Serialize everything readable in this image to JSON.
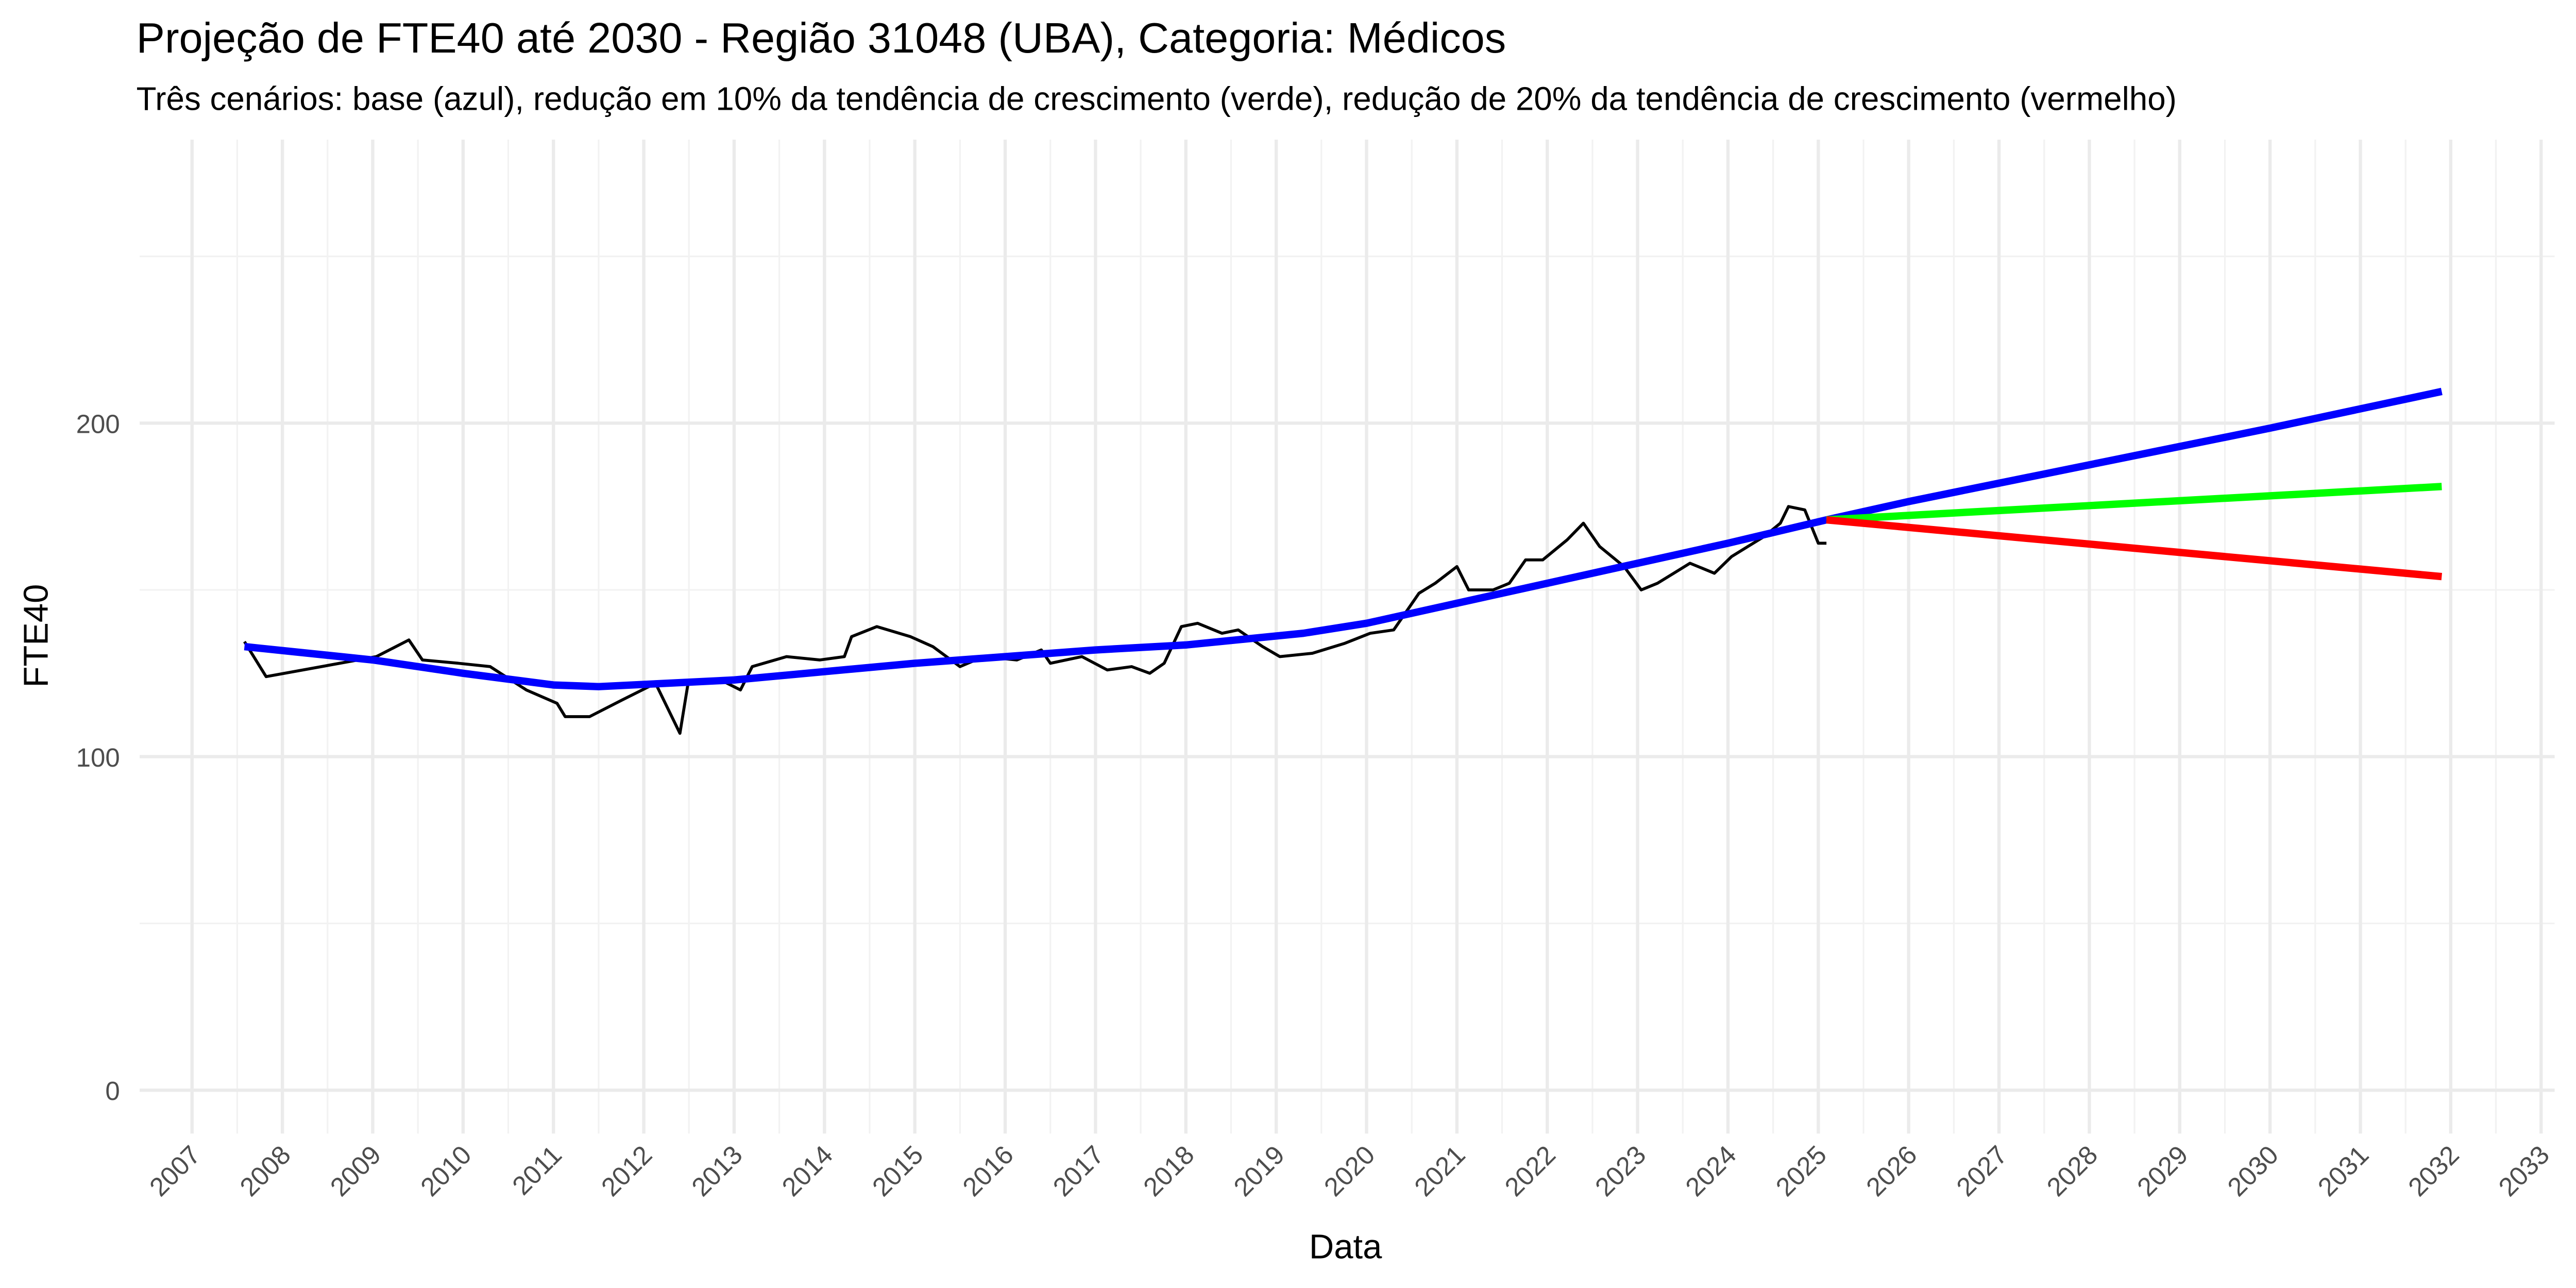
{
  "chart_data": {
    "type": "line",
    "title": "Projeção de FTE40 até 2030 - Região 31048 (UBA), Categoria: Médicos",
    "subtitle": "Três cenários: base (azul), redução em 10% da tendência de crescimento (verde), redução de 20% da tendência de crescimento (vermelho)",
    "x_label": "Data",
    "y_label": "FTE40",
    "xlim": [
      2006.42,
      2033.15
    ],
    "ylim": [
      -13,
      285
    ],
    "xticks": [
      2007,
      2008,
      2009,
      2010,
      2011,
      2012,
      2013,
      2014,
      2015,
      2016,
      2017,
      2018,
      2019,
      2020,
      2021,
      2022,
      2023,
      2024,
      2025,
      2026,
      2027,
      2028,
      2029,
      2030,
      2031,
      2032,
      2033
    ],
    "yticks": [
      0,
      100,
      200
    ],
    "grid": true,
    "series": [
      {
        "color": "#000000",
        "width": 1.8,
        "x": [
          2007.58,
          2007.82,
          2009.04,
          2009.4,
          2009.55,
          2009.95,
          2010.3,
          2010.7,
          2011.04,
          2011.13,
          2011.4,
          2011.76,
          2012.13,
          2012.4,
          2012.49,
          2012.85,
          2013.07,
          2013.2,
          2013.58,
          2013.95,
          2014.22,
          2014.3,
          2014.58,
          2014.95,
          2015.2,
          2015.5,
          2015.76,
          2016.13,
          2016.4,
          2016.5,
          2016.85,
          2017.13,
          2017.4,
          2017.6,
          2017.76,
          2017.95,
          2018.13,
          2018.4,
          2018.58,
          2018.85,
          2019.04,
          2019.4,
          2019.76,
          2020.04,
          2020.3,
          2020.58,
          2020.76,
          2021.0,
          2021.13,
          2021.4,
          2021.58,
          2021.76,
          2021.95,
          2022.22,
          2022.4,
          2022.58,
          2022.85,
          2023.04,
          2023.22,
          2023.4,
          2023.58,
          2023.85,
          2024.04,
          2024.22,
          2024.4,
          2024.58,
          2024.67,
          2024.85,
          2025.0,
          2025.09
        ],
        "values": [
          134.5,
          124,
          130,
          135,
          129,
          128,
          127,
          120,
          116,
          112,
          112,
          117,
          122,
          107,
          122,
          123,
          120,
          127,
          130,
          129,
          130,
          136,
          139,
          136,
          133,
          127,
          130,
          129,
          132,
          128,
          130,
          126,
          127,
          125,
          128,
          139,
          140,
          137,
          138,
          133,
          130,
          131,
          134,
          137,
          138,
          149,
          152,
          157,
          150,
          150,
          152,
          159,
          159,
          165,
          170,
          163,
          157,
          150,
          152,
          155,
          158,
          155,
          160,
          163,
          166,
          170,
          175,
          174,
          164,
          164
        ]
      },
      {
        "color": "#0000ff",
        "width": 4.5,
        "x": [
          2007.58,
          2009,
          2010,
          2011,
          2011.5,
          2013,
          2015,
          2017,
          2018,
          2019.3,
          2020,
          2021,
          2022,
          2023,
          2024,
          2025.09,
          2026,
          2028,
          2030,
          2031.9
        ],
        "values": [
          133,
          129,
          125,
          121.5,
          121,
          123,
          128,
          132,
          133.5,
          137,
          140,
          146,
          152,
          158,
          164,
          171,
          176.5,
          187.5,
          198.5,
          209.5
        ]
      },
      {
        "color": "#00ff00",
        "width": 4.5,
        "x": [
          2025.09,
          2031.9
        ],
        "values": [
          171,
          181
        ]
      },
      {
        "color": "#ff0000",
        "width": 4.5,
        "x": [
          2025.09,
          2031.9
        ],
        "values": [
          171,
          154
        ]
      }
    ]
  }
}
